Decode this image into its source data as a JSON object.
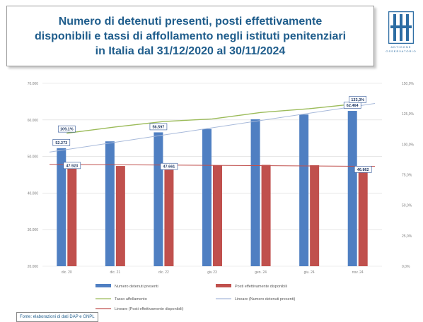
{
  "header": {
    "title_lines": [
      "Numero di detenuti presenti, posti effettivamente",
      "disponibili e tassi di affollamento negli istituti penitenziari",
      "in Italia dal 31/12/2020 al 30/11/2024"
    ],
    "logo_text": [
      "ANTIGONE",
      "OSSERVATORIO"
    ]
  },
  "source": "Fonte: elaborazioni di dati DAP e GNPL",
  "colors": {
    "title": "#1f5d8c",
    "bar_detenuti": "#4f7fc2",
    "bar_posti": "#c0504d",
    "line_tasso": "#9bbb59",
    "trend_detenuti": "#a7b9da",
    "trend_posti": "#c0504d",
    "grid": "#d9d9d9",
    "label_border": "#2f5597"
  },
  "chart_data": {
    "type": "bar",
    "categories": [
      "dic. 20",
      "dic. 21",
      "dic. 22",
      "giu 23",
      "gen. 24",
      "giu. 24",
      "nov. 24"
    ],
    "left_axis": {
      "ylim": [
        20000,
        70000
      ],
      "ticks": [
        "70.000",
        "60.000",
        "50.000",
        "40.000",
        "30.000",
        "20.000"
      ]
    },
    "right_axis": {
      "ylim": [
        0,
        150
      ],
      "ticks": [
        "150,0%",
        "125,0%",
        "100,0%",
        "75,0%",
        "50,0%",
        "25,0%",
        "0,0%"
      ]
    },
    "series": [
      {
        "name": "Numero detenuti presenti",
        "kind": "bar",
        "axis": "left",
        "values": [
          52273,
          54134,
          56597,
          57525,
          60166,
          61480,
          62464
        ]
      },
      {
        "name": "Posti effettivamente disponibili",
        "kind": "bar",
        "axis": "left",
        "values": [
          47923,
          47400,
          47661,
          47600,
          47700,
          47600,
          46862
        ]
      },
      {
        "name": "Tasso affollamento",
        "kind": "line",
        "axis": "right",
        "values": [
          109.1,
          114.2,
          118.7,
          120.8,
          126.1,
          129.2,
          133.3
        ]
      },
      {
        "name": "Lineare (Numero detenuti presenti)",
        "kind": "trend",
        "axis": "left",
        "from": 51200,
        "to": 64500
      },
      {
        "name": "Lineare (Posti effettivamente disponibili)",
        "kind": "trend",
        "axis": "left",
        "from": 47850,
        "to": 47300
      }
    ],
    "data_labels": [
      {
        "series": 0,
        "index": 0,
        "text": "52.273"
      },
      {
        "series": 1,
        "index": 0,
        "text": "47.923"
      },
      {
        "series": 0,
        "index": 2,
        "text": "56.597"
      },
      {
        "series": 1,
        "index": 2,
        "text": "47.661"
      },
      {
        "series": 0,
        "index": 6,
        "text": "62.464"
      },
      {
        "series": 1,
        "index": 6,
        "text": "46.862"
      },
      {
        "series": 2,
        "index": 0,
        "text": "109,1%"
      },
      {
        "series": 2,
        "index": 6,
        "text": "133,3%"
      }
    ],
    "legend": [
      "Numero detenuti presenti",
      "Posti effettivamente disponibili",
      "Tasso affollamento",
      "Lineare (Numero detenuti presenti)",
      "Lineare (Posti effettivamente disponibili)"
    ],
    "legend_position": "bottom",
    "grid": true
  }
}
